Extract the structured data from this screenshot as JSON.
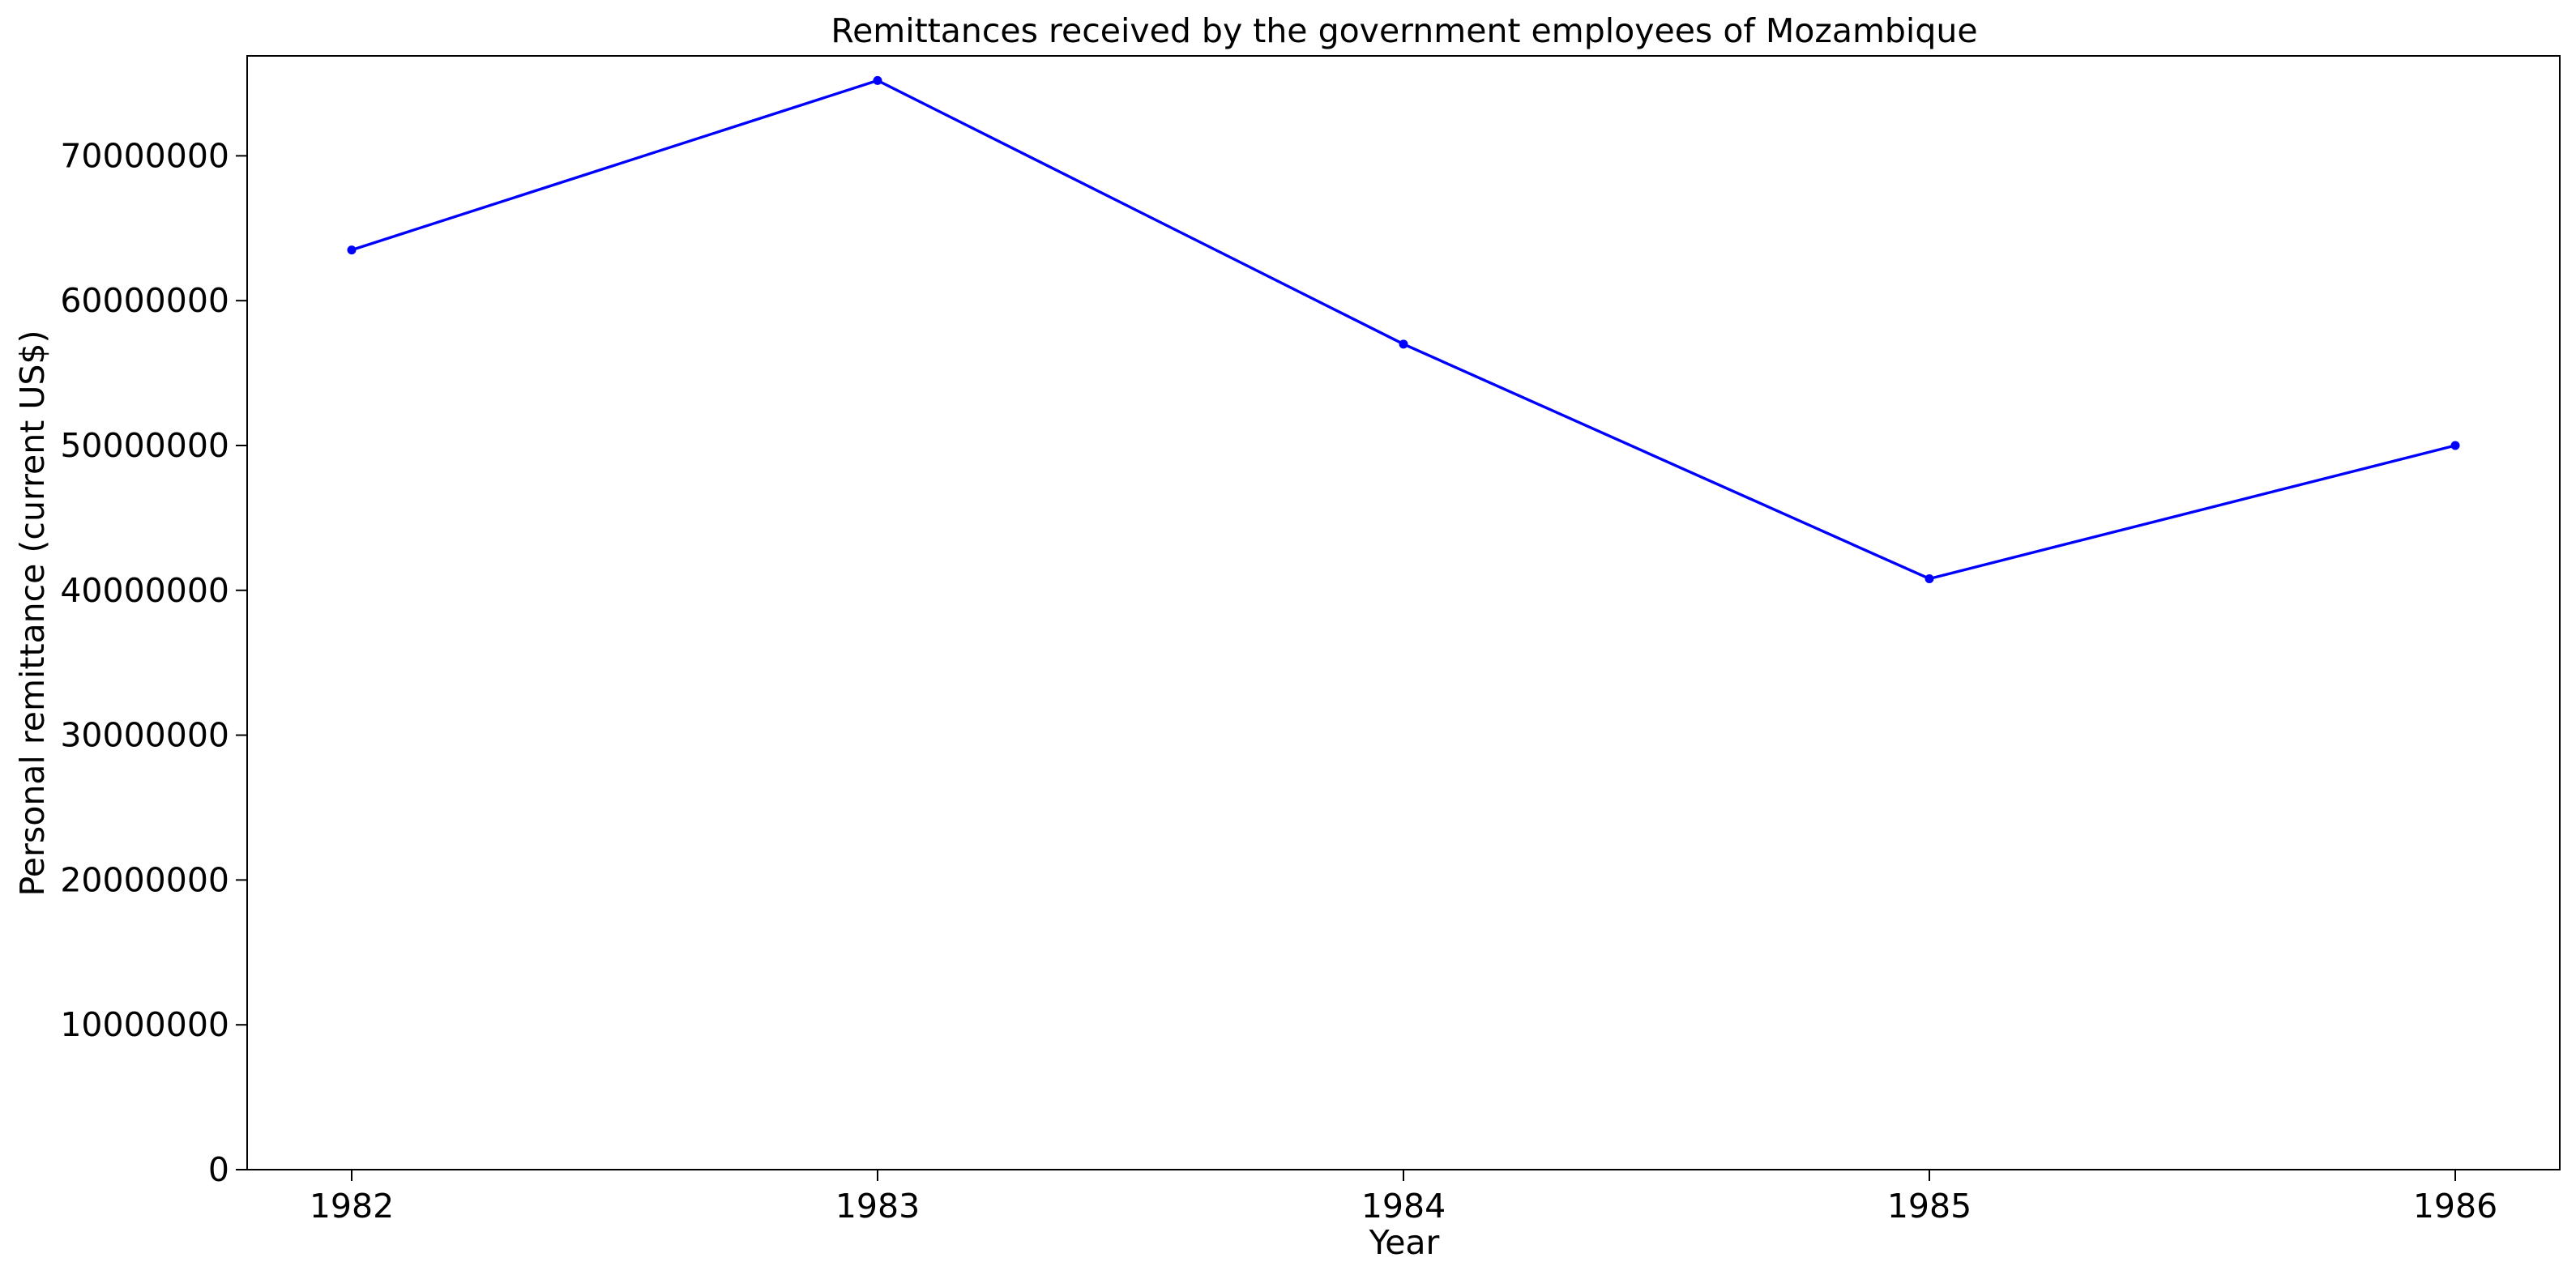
{
  "chart_data": {
    "type": "line",
    "title": "Remittances received by the government employees of Mozambique",
    "xlabel": "Year",
    "ylabel": "Personal remittance (current US$)",
    "x": [
      "1982",
      "1983",
      "1984",
      "1985",
      "1986"
    ],
    "y_ticks": [
      "0",
      "10000000",
      "20000000",
      "30000000",
      "40000000",
      "50000000",
      "60000000",
      "70000000"
    ],
    "ylim": [
      0,
      76900000
    ],
    "series": [
      {
        "values": [
          63500000,
          75200000,
          57000000,
          40800000,
          50000000
        ],
        "color": "#0000ff",
        "marker": "circle"
      }
    ],
    "grid": false,
    "legend": "none"
  }
}
